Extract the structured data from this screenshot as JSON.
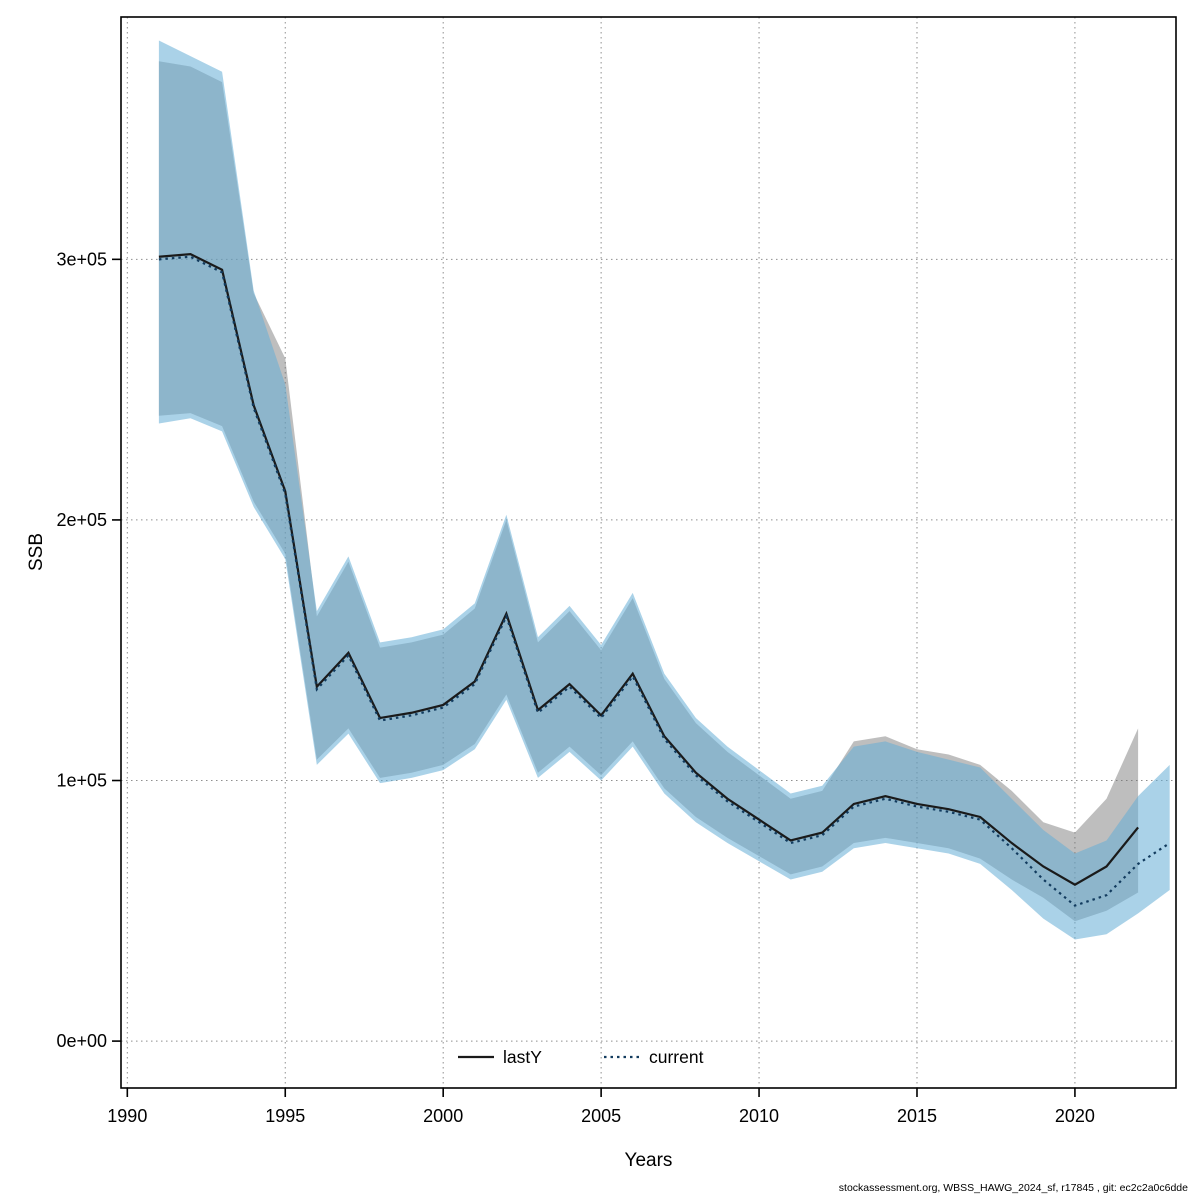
{
  "chart_data": {
    "type": "line",
    "title": "",
    "xlabel": "Years",
    "ylabel": "SSB",
    "footer": "stockassessment.org, WBSS_HAWG_2024_sf, r17845 , git: ec2c2a0c6dde",
    "grid": true,
    "xlim": [
      1989.8,
      2023.2
    ],
    "ylim": [
      -18000,
      393000
    ],
    "x_ticks": [
      1990,
      1995,
      2000,
      2005,
      2010,
      2015,
      2020
    ],
    "x_tick_labels": [
      "1990",
      "1995",
      "2000",
      "2005",
      "2010",
      "2015",
      "2020"
    ],
    "y_ticks": [
      0,
      100000,
      200000,
      300000
    ],
    "y_tick_labels": [
      "0e+00",
      "1e+05",
      "2e+05",
      "3e+05"
    ],
    "legend": {
      "position": "bottom-center-inside",
      "items": [
        {
          "label": "lastY",
          "line_style": "solid",
          "line_color": "#1a1a1a"
        },
        {
          "label": "current",
          "line_style": "dotted",
          "line_color": "#123b5e"
        }
      ]
    },
    "series": [
      {
        "name": "lastY",
        "line_style": "solid",
        "line_color": "#1a1a1a",
        "band_color": "#6e6e6e",
        "band_opacity": 0.45,
        "x": [
          1991,
          1992,
          1993,
          1994,
          1995,
          1996,
          1997,
          1998,
          1999,
          2000,
          2001,
          2002,
          2003,
          2004,
          2005,
          2006,
          2007,
          2008,
          2009,
          2010,
          2011,
          2012,
          2013,
          2014,
          2015,
          2016,
          2017,
          2018,
          2019,
          2020,
          2021,
          2022
        ],
        "y": [
          301000,
          302000,
          296000,
          244000,
          211000,
          136000,
          149000,
          124000,
          126000,
          129000,
          138000,
          164000,
          127000,
          137000,
          125000,
          141000,
          117000,
          103000,
          93000,
          85000,
          77000,
          80000,
          91000,
          94000,
          91000,
          89000,
          86000,
          76000,
          67000,
          60000,
          67000,
          82000
        ],
        "lo": [
          240000,
          241000,
          236000,
          207000,
          187000,
          108000,
          120000,
          101000,
          103000,
          106000,
          114000,
          133000,
          103000,
          113000,
          102000,
          115000,
          97000,
          86000,
          78000,
          71000,
          64000,
          67000,
          76000,
          78000,
          76000,
          74000,
          70000,
          62000,
          55000,
          46000,
          50000,
          57000
        ],
        "hi": [
          376000,
          374000,
          368000,
          287000,
          262000,
          163000,
          184000,
          151000,
          153000,
          156000,
          166000,
          200000,
          153000,
          165000,
          150000,
          170000,
          139000,
          122000,
          111000,
          102000,
          93000,
          96000,
          115000,
          117000,
          112000,
          110000,
          106000,
          96000,
          84000,
          80000,
          93000,
          120000
        ]
      },
      {
        "name": "current",
        "line_style": "dotted",
        "line_color": "#123b5e",
        "band_color": "#64add6",
        "band_opacity": 0.55,
        "x": [
          1991,
          1992,
          1993,
          1994,
          1995,
          1996,
          1997,
          1998,
          1999,
          2000,
          2001,
          2002,
          2003,
          2004,
          2005,
          2006,
          2007,
          2008,
          2009,
          2010,
          2011,
          2012,
          2013,
          2014,
          2015,
          2016,
          2017,
          2018,
          2019,
          2020,
          2021,
          2022,
          2023
        ],
        "y": [
          300000,
          301000,
          295000,
          243000,
          210000,
          135000,
          148000,
          123000,
          125000,
          128000,
          137000,
          163000,
          126000,
          136000,
          124000,
          140000,
          116000,
          102000,
          92000,
          84000,
          76000,
          79000,
          90000,
          93000,
          90000,
          88000,
          85000,
          74000,
          62000,
          52000,
          56000,
          68000,
          76000
        ],
        "lo": [
          237000,
          239000,
          234000,
          205000,
          185000,
          106000,
          118000,
          99000,
          101000,
          104000,
          112000,
          131000,
          101000,
          111000,
          100000,
          113000,
          95000,
          84000,
          76000,
          69000,
          62000,
          65000,
          74000,
          76000,
          74000,
          72000,
          68000,
          58000,
          47000,
          39000,
          41000,
          49000,
          58000
        ],
        "hi": [
          384000,
          378000,
          372000,
          288000,
          252000,
          165000,
          186000,
          153000,
          155000,
          158000,
          168000,
          202000,
          155000,
          167000,
          152000,
          172000,
          141000,
          124000,
          113000,
          104000,
          95000,
          98000,
          113000,
          115000,
          111000,
          108000,
          105000,
          93000,
          81000,
          72000,
          77000,
          94000,
          106000
        ]
      }
    ]
  }
}
